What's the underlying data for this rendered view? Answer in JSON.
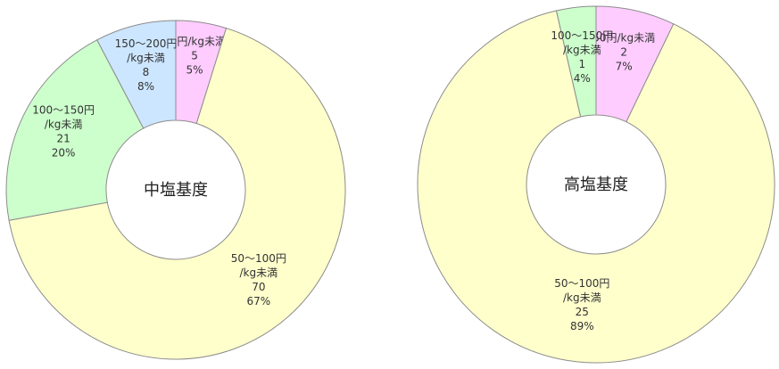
{
  "chart_data": [
    {
      "type": "donut",
      "title": "中塩基度",
      "categories": [
        "50円/kg未満",
        "50～100円/kg未満",
        "100～150円/kg未満",
        "150～200円/kg未満"
      ],
      "values": [
        5,
        70,
        21,
        8
      ],
      "percent_labels": [
        "5%",
        "67%",
        "20%",
        "8%"
      ],
      "colors": [
        "#ffccff",
        "#ffffcc",
        "#ccffcc",
        "#cce6ff"
      ]
    },
    {
      "type": "donut",
      "title": "高塩基度",
      "categories": [
        "50円/kg未満",
        "50～100円/kg未満",
        "100～150円/kg未満"
      ],
      "values": [
        2,
        25,
        1
      ],
      "percent_labels": [
        "7%",
        "89%",
        "4%"
      ],
      "colors": [
        "#ffccff",
        "#ffffcc",
        "#ccffcc"
      ]
    }
  ]
}
